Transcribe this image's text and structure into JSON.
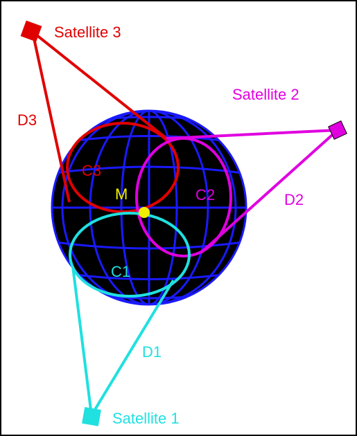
{
  "satellites": [
    "Satellite 1",
    "Satellite 2",
    "Satellite 3"
  ],
  "distances": [
    "D1",
    "D2",
    "D3"
  ],
  "circles": [
    "C1",
    "C2",
    "C3"
  ],
  "point": "M"
}
